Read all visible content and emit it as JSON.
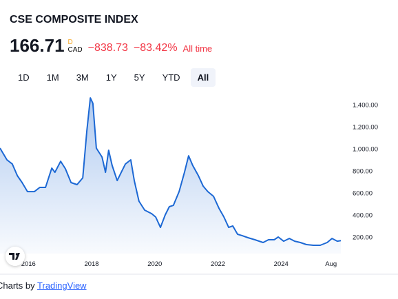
{
  "header": {
    "title": "CSE COMPOSITE INDEX",
    "price": "166.71",
    "period_mark": "D",
    "currency": "CAD",
    "change": "−838.73",
    "change_pct": "−83.42%",
    "change_period": "All time",
    "ranges": [
      "1D",
      "1M",
      "3M",
      "1Y",
      "5Y",
      "YTD",
      "All"
    ],
    "selected": 6
  },
  "footer": {
    "text": "Charts by",
    "link": "TradingView"
  },
  "chart_data": {
    "type": "area",
    "color": "#1c68d4",
    "grid": false,
    "x": [
      2015.1,
      2015.32,
      2015.49,
      2015.65,
      2015.8,
      2015.97,
      2016.19,
      2016.36,
      2016.54,
      2016.74,
      2016.84,
      2017.02,
      2017.17,
      2017.35,
      2017.54,
      2017.72,
      2017.85,
      2017.96,
      2018.04,
      2018.15,
      2018.33,
      2018.44,
      2018.54,
      2018.65,
      2018.81,
      2018.94,
      2019.07,
      2019.24,
      2019.35,
      2019.5,
      2019.68,
      2019.9,
      2020.03,
      2020.18,
      2020.33,
      2020.46,
      2020.59,
      2020.77,
      2020.94,
      2021.07,
      2021.2,
      2021.38,
      2021.53,
      2021.68,
      2021.86,
      2022.03,
      2022.19,
      2022.34,
      2022.47,
      2022.62,
      2022.77,
      2022.95,
      2023.17,
      2023.43,
      2023.6,
      2023.78,
      2023.91,
      2024.08,
      2024.26,
      2024.43,
      2024.61,
      2024.8,
      2025.02,
      2025.24,
      2025.46,
      2025.61,
      2025.78,
      2025.89
    ],
    "values": [
      1006,
      900,
      862,
      756,
      694,
      612,
      612,
      650,
      650,
      825,
      787,
      887,
      819,
      694,
      675,
      737,
      1162,
      1462,
      1412,
      1006,
      925,
      787,
      987,
      850,
      712,
      787,
      862,
      900,
      712,
      525,
      444,
      412,
      381,
      287,
      400,
      475,
      487,
      612,
      787,
      937,
      850,
      756,
      662,
      612,
      569,
      462,
      381,
      287,
      300,
      225,
      212,
      194,
      175,
      150,
      175,
      175,
      200,
      162,
      187,
      162,
      150,
      131,
      125,
      125,
      150,
      187,
      162,
      166.71
    ],
    "xlim": [
      2015.1,
      2026.0
    ],
    "xticks": [
      2016,
      2018,
      2020,
      2022,
      2024,
      {
        "value": 2025.58,
        "label": "Aug"
      }
    ],
    "ylim": [
      50,
      1475
    ],
    "yticks": [
      {
        "value": 200,
        "label": "200.00"
      },
      {
        "value": 400,
        "label": "400.00"
      },
      {
        "value": 600,
        "label": "600.00"
      },
      {
        "value": 800,
        "label": "800.00"
      },
      {
        "value": 1000,
        "label": "1,000.00"
      },
      {
        "value": 1200,
        "label": "1,200.00"
      },
      {
        "value": 1400,
        "label": "1,400.00"
      }
    ]
  }
}
